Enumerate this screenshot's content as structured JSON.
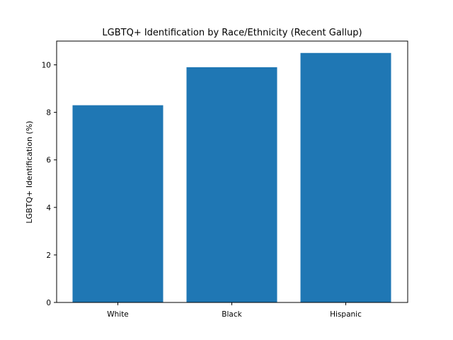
{
  "chart_data": {
    "type": "bar",
    "title": "LGBTQ+ Identification by Race/Ethnicity (Recent Gallup)",
    "xlabel": "",
    "ylabel": "LGBTQ+ Identification (%)",
    "categories": [
      "White",
      "Black",
      "Hispanic"
    ],
    "values": [
      8.3,
      9.9,
      10.5
    ],
    "ylim": [
      0,
      11
    ],
    "yticks": [
      0,
      2,
      4,
      6,
      8,
      10
    ],
    "bar_color": "#1f77b4",
    "grid": false,
    "legend": "none"
  }
}
